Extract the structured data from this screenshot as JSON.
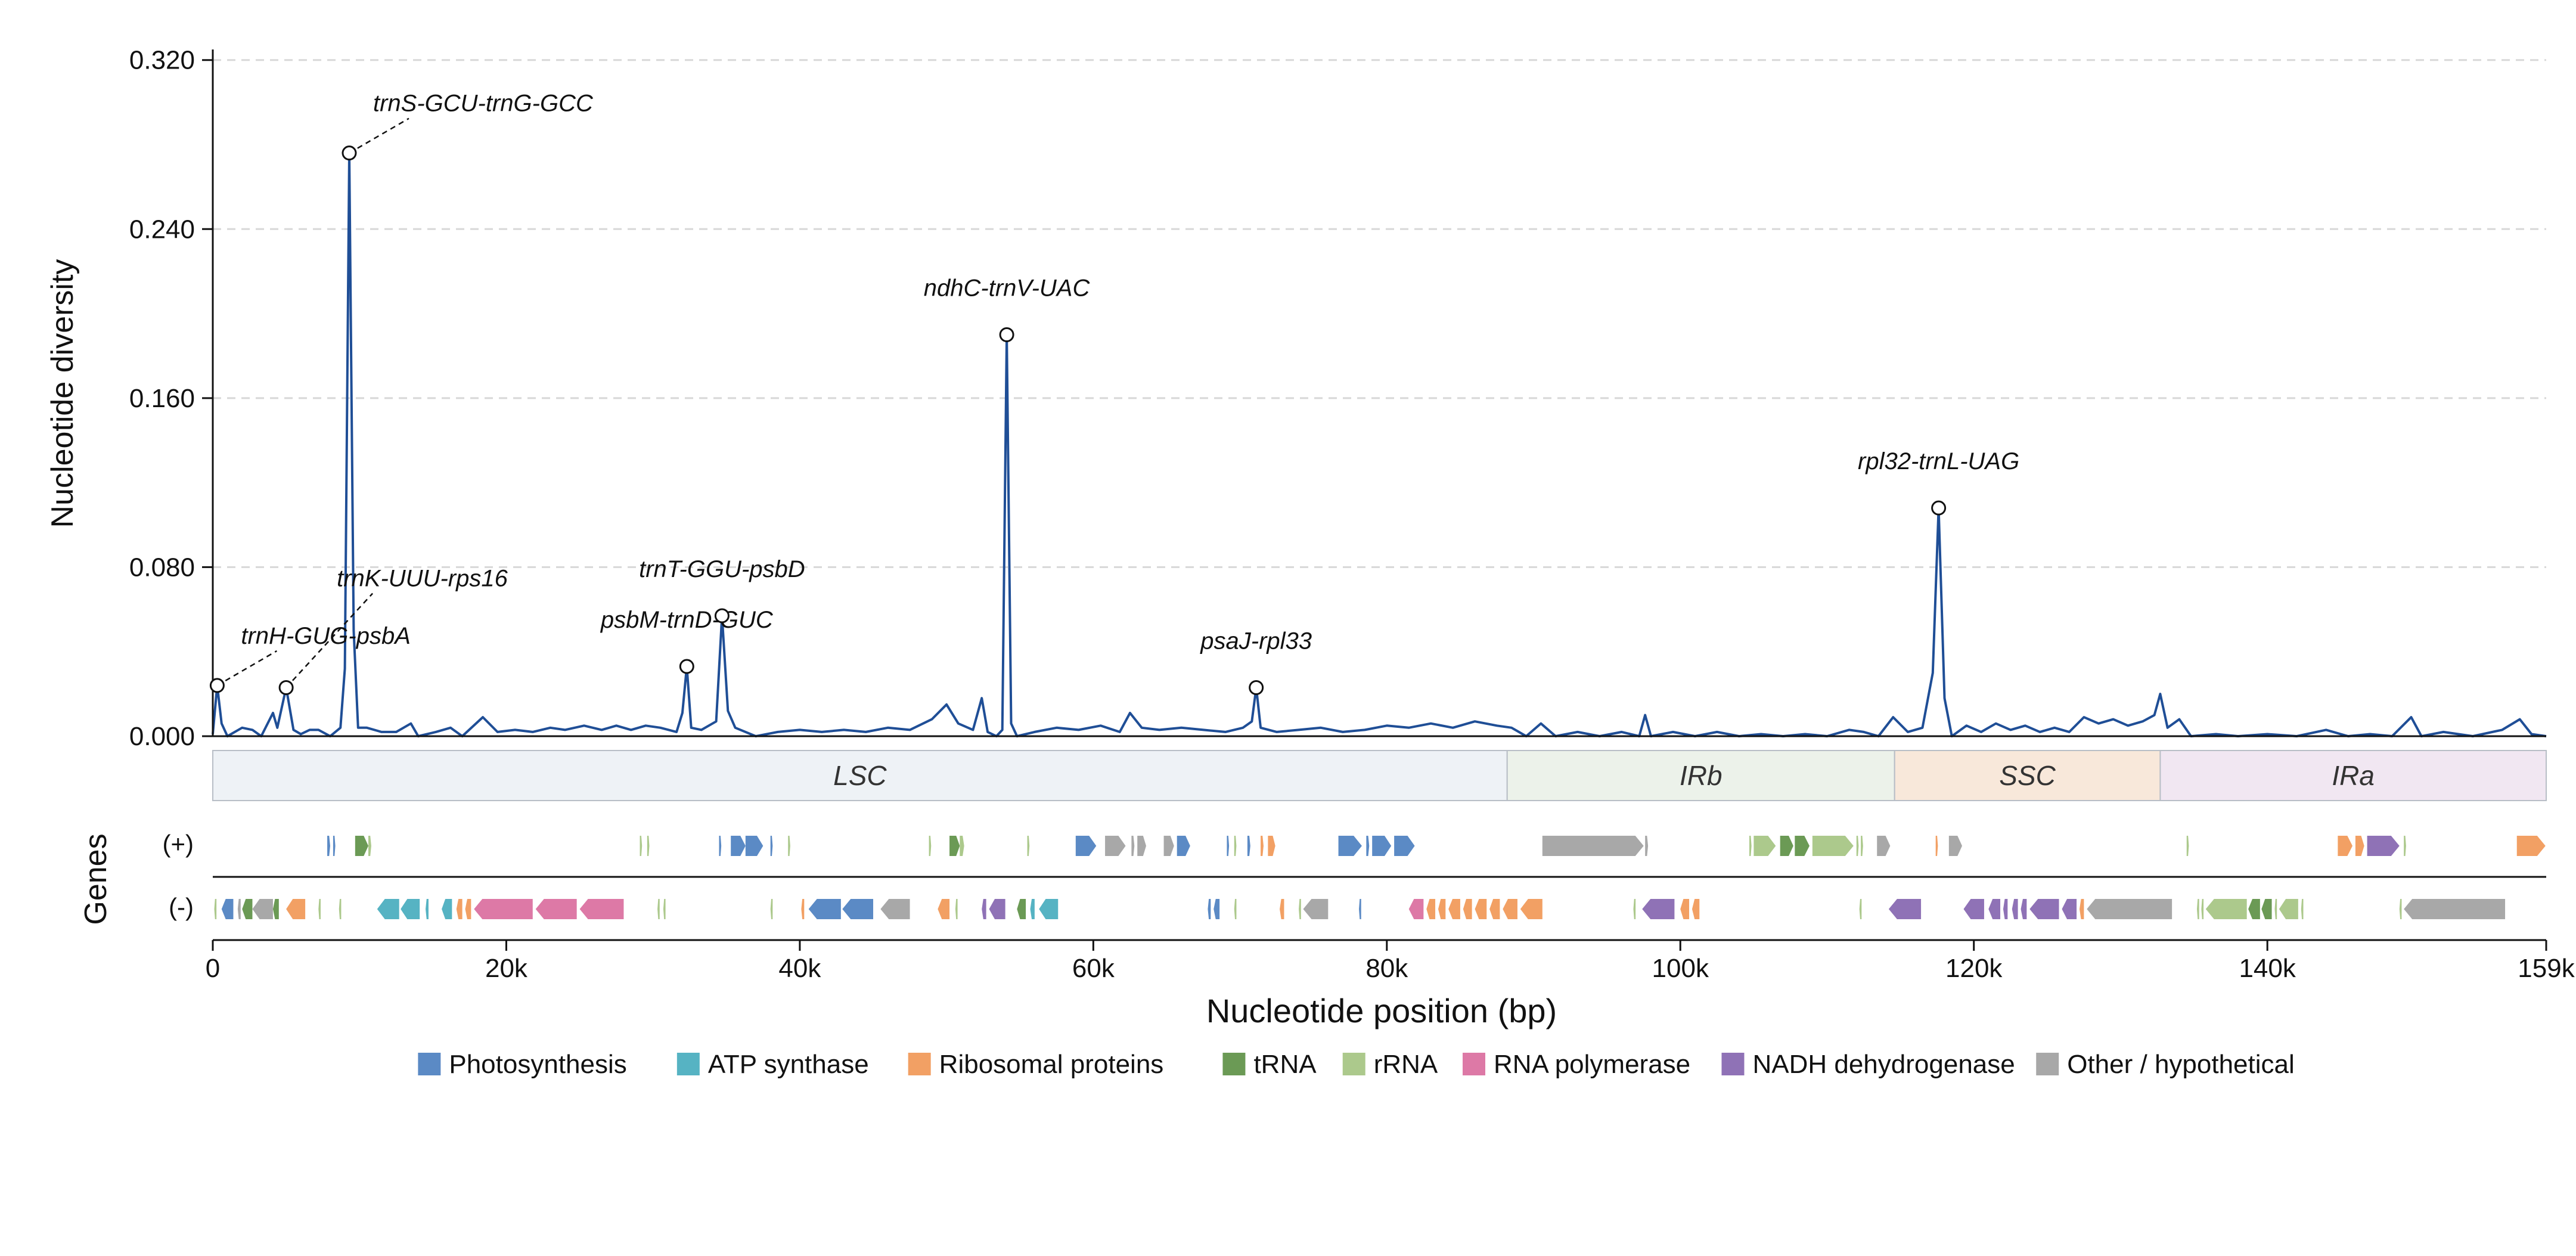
{
  "chart_data": {
    "type": "line",
    "title": "",
    "ylabel": "Nucleotide diversity",
    "xlabel": "Nucleotide position (bp)",
    "genes_label": "Genes",
    "strand_plus_label": "(+)",
    "strand_minus_label": "(-)",
    "xlim": [
      0,
      159000
    ],
    "ylim": [
      0,
      0.325
    ],
    "y_ticks": [
      0,
      0.08,
      0.16,
      0.24,
      0.32
    ],
    "y_tick_labels": [
      "0.000",
      "0.080",
      "0.160",
      "0.240",
      "0.320"
    ],
    "x_ticks": [
      0,
      20000,
      40000,
      60000,
      80000,
      100000,
      120000,
      140000,
      159000
    ],
    "x_tick_labels": [
      "0",
      "20k",
      "40k",
      "60k",
      "80k",
      "100k",
      "120k",
      "140k",
      "159k"
    ],
    "grid": "horizontal dashed",
    "series_color": "#1f4e96",
    "pi_series": [
      [
        0,
        0.001
      ],
      [
        300,
        0.024
      ],
      [
        600,
        0.006
      ],
      [
        1000,
        0.0
      ],
      [
        2000,
        0.004
      ],
      [
        2700,
        0.003
      ],
      [
        3300,
        0.0
      ],
      [
        4100,
        0.011
      ],
      [
        4400,
        0.004
      ],
      [
        5000,
        0.023
      ],
      [
        5500,
        0.003
      ],
      [
        6000,
        0.001
      ],
      [
        6600,
        0.003
      ],
      [
        7200,
        0.003
      ],
      [
        8000,
        0.0
      ],
      [
        8700,
        0.004
      ],
      [
        9000,
        0.032
      ],
      [
        9300,
        0.276
      ],
      [
        9600,
        0.05
      ],
      [
        9900,
        0.004
      ],
      [
        10500,
        0.004
      ],
      [
        11500,
        0.002
      ],
      [
        12500,
        0.002
      ],
      [
        13500,
        0.006
      ],
      [
        14000,
        0.0
      ],
      [
        15200,
        0.002
      ],
      [
        16200,
        0.004
      ],
      [
        17000,
        0.0
      ],
      [
        18400,
        0.009
      ],
      [
        19400,
        0.002
      ],
      [
        20600,
        0.003
      ],
      [
        21800,
        0.002
      ],
      [
        23000,
        0.004
      ],
      [
        24000,
        0.003
      ],
      [
        25300,
        0.005
      ],
      [
        26500,
        0.003
      ],
      [
        27500,
        0.005
      ],
      [
        28500,
        0.003
      ],
      [
        29500,
        0.005
      ],
      [
        30500,
        0.004
      ],
      [
        31600,
        0.002
      ],
      [
        32000,
        0.011
      ],
      [
        32300,
        0.033
      ],
      [
        32600,
        0.004
      ],
      [
        33300,
        0.003
      ],
      [
        34300,
        0.007
      ],
      [
        34700,
        0.057
      ],
      [
        35100,
        0.012
      ],
      [
        35600,
        0.004
      ],
      [
        37000,
        0.0
      ],
      [
        38500,
        0.002
      ],
      [
        40000,
        0.003
      ],
      [
        41500,
        0.002
      ],
      [
        43000,
        0.003
      ],
      [
        44500,
        0.002
      ],
      [
        46000,
        0.004
      ],
      [
        47500,
        0.003
      ],
      [
        49000,
        0.008
      ],
      [
        50000,
        0.015
      ],
      [
        50800,
        0.006
      ],
      [
        51800,
        0.003
      ],
      [
        52400,
        0.018
      ],
      [
        52800,
        0.002
      ],
      [
        53400,
        0.0
      ],
      [
        53800,
        0.003
      ],
      [
        54100,
        0.19
      ],
      [
        54400,
        0.006
      ],
      [
        54800,
        0.0
      ],
      [
        56000,
        0.002
      ],
      [
        57500,
        0.004
      ],
      [
        59000,
        0.003
      ],
      [
        60500,
        0.005
      ],
      [
        61800,
        0.002
      ],
      [
        62500,
        0.011
      ],
      [
        63300,
        0.004
      ],
      [
        64500,
        0.003
      ],
      [
        66000,
        0.004
      ],
      [
        67500,
        0.003
      ],
      [
        69000,
        0.002
      ],
      [
        70200,
        0.004
      ],
      [
        70800,
        0.007
      ],
      [
        71100,
        0.023
      ],
      [
        71400,
        0.004
      ],
      [
        72500,
        0.002
      ],
      [
        74000,
        0.003
      ],
      [
        75500,
        0.004
      ],
      [
        77000,
        0.002
      ],
      [
        78500,
        0.003
      ],
      [
        80000,
        0.005
      ],
      [
        81500,
        0.004
      ],
      [
        83000,
        0.006
      ],
      [
        84500,
        0.004
      ],
      [
        86000,
        0.007
      ],
      [
        87500,
        0.005
      ],
      [
        88500,
        0.004
      ],
      [
        89500,
        0.0
      ],
      [
        90500,
        0.006
      ],
      [
        91500,
        0.0
      ],
      [
        93000,
        0.002
      ],
      [
        94500,
        0.0
      ],
      [
        96000,
        0.002
      ],
      [
        97200,
        0.0
      ],
      [
        97600,
        0.01
      ],
      [
        98000,
        0.0
      ],
      [
        99500,
        0.002
      ],
      [
        101000,
        0.0
      ],
      [
        102500,
        0.002
      ],
      [
        104000,
        0.0
      ],
      [
        105500,
        0.001
      ],
      [
        107000,
        0.0
      ],
      [
        108500,
        0.001
      ],
      [
        110000,
        0.0
      ],
      [
        111500,
        0.003
      ],
      [
        112500,
        0.002
      ],
      [
        113500,
        0.0
      ],
      [
        114500,
        0.009
      ],
      [
        115500,
        0.002
      ],
      [
        116500,
        0.004
      ],
      [
        117200,
        0.03
      ],
      [
        117600,
        0.108
      ],
      [
        118000,
        0.018
      ],
      [
        118500,
        0.0
      ],
      [
        119500,
        0.005
      ],
      [
        120500,
        0.002
      ],
      [
        121500,
        0.006
      ],
      [
        122500,
        0.003
      ],
      [
        123500,
        0.005
      ],
      [
        124500,
        0.002
      ],
      [
        125500,
        0.004
      ],
      [
        126500,
        0.002
      ],
      [
        127500,
        0.009
      ],
      [
        128500,
        0.006
      ],
      [
        129500,
        0.008
      ],
      [
        130500,
        0.005
      ],
      [
        131500,
        0.007
      ],
      [
        132300,
        0.01
      ],
      [
        132700,
        0.02
      ],
      [
        133200,
        0.004
      ],
      [
        134000,
        0.008
      ],
      [
        134800,
        0.0
      ],
      [
        136500,
        0.001
      ],
      [
        138000,
        0.0
      ],
      [
        140000,
        0.001
      ],
      [
        142000,
        0.0
      ],
      [
        144000,
        0.003
      ],
      [
        145500,
        0.0
      ],
      [
        147000,
        0.001
      ],
      [
        148500,
        0.0
      ],
      [
        149800,
        0.009
      ],
      [
        150500,
        0.0
      ],
      [
        152000,
        0.002
      ],
      [
        154000,
        0.0
      ],
      [
        156000,
        0.003
      ],
      [
        157200,
        0.008
      ],
      [
        158000,
        0.001
      ],
      [
        159000,
        0.0
      ]
    ],
    "highlights": [
      {
        "label": "trnH-GUG-psbA",
        "x": 300,
        "y": 0.024
      },
      {
        "label": "trnK-UUU-rps16",
        "x": 5000,
        "y": 0.023
      },
      {
        "label": "trnS-GCU-trnG-GCC",
        "x": 9300,
        "y": 0.276
      },
      {
        "label": "psbM-trnD-GUC",
        "x": 32300,
        "y": 0.033
      },
      {
        "label": "trnT-GGU-psbD",
        "x": 34700,
        "y": 0.057
      },
      {
        "label": "ndhC-trnV-UAC",
        "x": 54100,
        "y": 0.19
      },
      {
        "label": "psaJ-rpl33",
        "x": 71100,
        "y": 0.023
      },
      {
        "label": "rpl32-trnL-UAG",
        "x": 117600,
        "y": 0.108
      }
    ],
    "regions": [
      {
        "name": "LSC",
        "start": 0,
        "end": 88200,
        "color": "#eef2f6"
      },
      {
        "name": "IRb",
        "start": 88200,
        "end": 114600,
        "color": "#ecf2ea"
      },
      {
        "name": "SSC",
        "start": 114600,
        "end": 132700,
        "color": "#f8e8da"
      },
      {
        "name": "IRa",
        "start": 132700,
        "end": 159000,
        "color": "#f1e7f2"
      }
    ],
    "legend": [
      {
        "label": "Photosynthesis",
        "color": "#5b8ac5"
      },
      {
        "label": "ATP synthase",
        "color": "#56b3c3"
      },
      {
        "label": "Ribosomal proteins",
        "color": "#f2a064"
      },
      {
        "label": "tRNA",
        "color": "#6b9a55"
      },
      {
        "label": "rRNA",
        "color": "#acc98c"
      },
      {
        "label": "RNA polymerase",
        "color": "#dd79a6"
      },
      {
        "label": "NADH dehydrogenase",
        "color": "#8f72b6"
      },
      {
        "label": "Other / hypothetical",
        "color": "#a8a8a8"
      }
    ],
    "genes_plus": [
      {
        "start": 7800,
        "end": 8000,
        "cat": 0
      },
      {
        "start": 8200,
        "end": 8350,
        "cat": 0
      },
      {
        "start": 9700,
        "end": 10600,
        "cat": 3
      },
      {
        "start": 10600,
        "end": 10800,
        "cat": 4
      },
      {
        "start": 29100,
        "end": 29250,
        "cat": 4
      },
      {
        "start": 29600,
        "end": 29750,
        "cat": 4
      },
      {
        "start": 34500,
        "end": 34650,
        "cat": 0
      },
      {
        "start": 35300,
        "end": 36300,
        "cat": 0
      },
      {
        "start": 36300,
        "end": 37500,
        "cat": 0
      },
      {
        "start": 38000,
        "end": 38150,
        "cat": 0
      },
      {
        "start": 39200,
        "end": 39350,
        "cat": 4
      },
      {
        "start": 48800,
        "end": 48950,
        "cat": 4
      },
      {
        "start": 50200,
        "end": 50900,
        "cat": 3
      },
      {
        "start": 50900,
        "end": 51200,
        "cat": 4
      },
      {
        "start": 55500,
        "end": 55650,
        "cat": 4
      },
      {
        "start": 58800,
        "end": 60200,
        "cat": 0
      },
      {
        "start": 60800,
        "end": 62200,
        "cat": 7
      },
      {
        "start": 62600,
        "end": 62800,
        "cat": 7
      },
      {
        "start": 63000,
        "end": 63600,
        "cat": 7
      },
      {
        "start": 64800,
        "end": 65500,
        "cat": 7
      },
      {
        "start": 65700,
        "end": 66600,
        "cat": 0
      },
      {
        "start": 69100,
        "end": 69250,
        "cat": 0
      },
      {
        "start": 69600,
        "end": 69750,
        "cat": 4
      },
      {
        "start": 70500,
        "end": 70700,
        "cat": 0
      },
      {
        "start": 71400,
        "end": 71600,
        "cat": 2
      },
      {
        "start": 71900,
        "end": 72400,
        "cat": 2
      },
      {
        "start": 76700,
        "end": 78300,
        "cat": 0
      },
      {
        "start": 78600,
        "end": 78800,
        "cat": 0
      },
      {
        "start": 79000,
        "end": 80300,
        "cat": 0
      },
      {
        "start": 80500,
        "end": 81900,
        "cat": 0
      },
      {
        "start": 90600,
        "end": 97500,
        "cat": 7
      },
      {
        "start": 97600,
        "end": 97800,
        "cat": 7
      },
      {
        "start": 104700,
        "end": 104850,
        "cat": 4
      },
      {
        "start": 105000,
        "end": 106500,
        "cat": 4
      },
      {
        "start": 106800,
        "end": 107700,
        "cat": 3
      },
      {
        "start": 107800,
        "end": 108800,
        "cat": 3
      },
      {
        "start": 109000,
        "end": 111800,
        "cat": 4
      },
      {
        "start": 112000,
        "end": 112150,
        "cat": 4
      },
      {
        "start": 112300,
        "end": 112450,
        "cat": 4
      },
      {
        "start": 113400,
        "end": 114300,
        "cat": 7
      },
      {
        "start": 117400,
        "end": 117550,
        "cat": 2
      },
      {
        "start": 118300,
        "end": 119200,
        "cat": 7
      },
      {
        "start": 134500,
        "end": 134650,
        "cat": 4
      },
      {
        "start": 144800,
        "end": 145800,
        "cat": 2
      },
      {
        "start": 146000,
        "end": 146600,
        "cat": 2
      },
      {
        "start": 146800,
        "end": 149000,
        "cat": 6
      },
      {
        "start": 149300,
        "end": 149450,
        "cat": 4
      },
      {
        "start": 157000,
        "end": 158950,
        "cat": 2
      }
    ],
    "genes_minus": [
      {
        "start": 100,
        "end": 250,
        "cat": 4
      },
      {
        "start": 600,
        "end": 1400,
        "cat": 0
      },
      {
        "start": 1700,
        "end": 1900,
        "cat": 7
      },
      {
        "start": 2000,
        "end": 2700,
        "cat": 3
      },
      {
        "start": 2700,
        "end": 4100,
        "cat": 7
      },
      {
        "start": 4100,
        "end": 4500,
        "cat": 3
      },
      {
        "start": 5000,
        "end": 6300,
        "cat": 2
      },
      {
        "start": 7200,
        "end": 7350,
        "cat": 4
      },
      {
        "start": 8600,
        "end": 8750,
        "cat": 4
      },
      {
        "start": 11200,
        "end": 12700,
        "cat": 1
      },
      {
        "start": 12800,
        "end": 14100,
        "cat": 1
      },
      {
        "start": 14500,
        "end": 14700,
        "cat": 1
      },
      {
        "start": 15600,
        "end": 16300,
        "cat": 1
      },
      {
        "start": 16600,
        "end": 17000,
        "cat": 2
      },
      {
        "start": 17200,
        "end": 17600,
        "cat": 2
      },
      {
        "start": 17800,
        "end": 21800,
        "cat": 5
      },
      {
        "start": 22000,
        "end": 24800,
        "cat": 5
      },
      {
        "start": 25000,
        "end": 28000,
        "cat": 5
      },
      {
        "start": 30300,
        "end": 30450,
        "cat": 4
      },
      {
        "start": 30700,
        "end": 30850,
        "cat": 4
      },
      {
        "start": 38000,
        "end": 38150,
        "cat": 4
      },
      {
        "start": 40100,
        "end": 40300,
        "cat": 2
      },
      {
        "start": 40600,
        "end": 42800,
        "cat": 0
      },
      {
        "start": 42900,
        "end": 45000,
        "cat": 0
      },
      {
        "start": 45500,
        "end": 47500,
        "cat": 7
      },
      {
        "start": 49400,
        "end": 50200,
        "cat": 2
      },
      {
        "start": 50600,
        "end": 50750,
        "cat": 4
      },
      {
        "start": 52400,
        "end": 52700,
        "cat": 6
      },
      {
        "start": 52900,
        "end": 54000,
        "cat": 6
      },
      {
        "start": 54800,
        "end": 55400,
        "cat": 3
      },
      {
        "start": 55700,
        "end": 56000,
        "cat": 1
      },
      {
        "start": 56300,
        "end": 57600,
        "cat": 1
      },
      {
        "start": 67800,
        "end": 68000,
        "cat": 0
      },
      {
        "start": 68200,
        "end": 68600,
        "cat": 0
      },
      {
        "start": 69600,
        "end": 69750,
        "cat": 4
      },
      {
        "start": 72700,
        "end": 73000,
        "cat": 2
      },
      {
        "start": 74000,
        "end": 74150,
        "cat": 4
      },
      {
        "start": 74300,
        "end": 76000,
        "cat": 7
      },
      {
        "start": 78100,
        "end": 78250,
        "cat": 0
      },
      {
        "start": 81500,
        "end": 82500,
        "cat": 5
      },
      {
        "start": 82700,
        "end": 83300,
        "cat": 2
      },
      {
        "start": 83500,
        "end": 84000,
        "cat": 2
      },
      {
        "start": 84200,
        "end": 85000,
        "cat": 2
      },
      {
        "start": 85200,
        "end": 85800,
        "cat": 2
      },
      {
        "start": 86000,
        "end": 86800,
        "cat": 2
      },
      {
        "start": 87000,
        "end": 87700,
        "cat": 2
      },
      {
        "start": 87900,
        "end": 88900,
        "cat": 2
      },
      {
        "start": 89100,
        "end": 90600,
        "cat": 2
      },
      {
        "start": 96800,
        "end": 96950,
        "cat": 4
      },
      {
        "start": 97400,
        "end": 99600,
        "cat": 6
      },
      {
        "start": 100000,
        "end": 100600,
        "cat": 2
      },
      {
        "start": 100800,
        "end": 101300,
        "cat": 2
      },
      {
        "start": 112200,
        "end": 112350,
        "cat": 4
      },
      {
        "start": 114200,
        "end": 116400,
        "cat": 6
      },
      {
        "start": 119300,
        "end": 120700,
        "cat": 6
      },
      {
        "start": 121000,
        "end": 121800,
        "cat": 6
      },
      {
        "start": 122000,
        "end": 122300,
        "cat": 6
      },
      {
        "start": 122600,
        "end": 123000,
        "cat": 6
      },
      {
        "start": 123200,
        "end": 123600,
        "cat": 6
      },
      {
        "start": 123800,
        "end": 125800,
        "cat": 6
      },
      {
        "start": 126000,
        "end": 127000,
        "cat": 6
      },
      {
        "start": 127200,
        "end": 127500,
        "cat": 2
      },
      {
        "start": 127700,
        "end": 133500,
        "cat": 7
      },
      {
        "start": 135200,
        "end": 135350,
        "cat": 4
      },
      {
        "start": 135500,
        "end": 135650,
        "cat": 4
      },
      {
        "start": 135800,
        "end": 138600,
        "cat": 4
      },
      {
        "start": 138700,
        "end": 139500,
        "cat": 3
      },
      {
        "start": 139600,
        "end": 140300,
        "cat": 3
      },
      {
        "start": 140500,
        "end": 140650,
        "cat": 4
      },
      {
        "start": 140800,
        "end": 142100,
        "cat": 4
      },
      {
        "start": 142300,
        "end": 142450,
        "cat": 4
      },
      {
        "start": 149000,
        "end": 149150,
        "cat": 4
      },
      {
        "start": 149300,
        "end": 156200,
        "cat": 7
      }
    ]
  }
}
